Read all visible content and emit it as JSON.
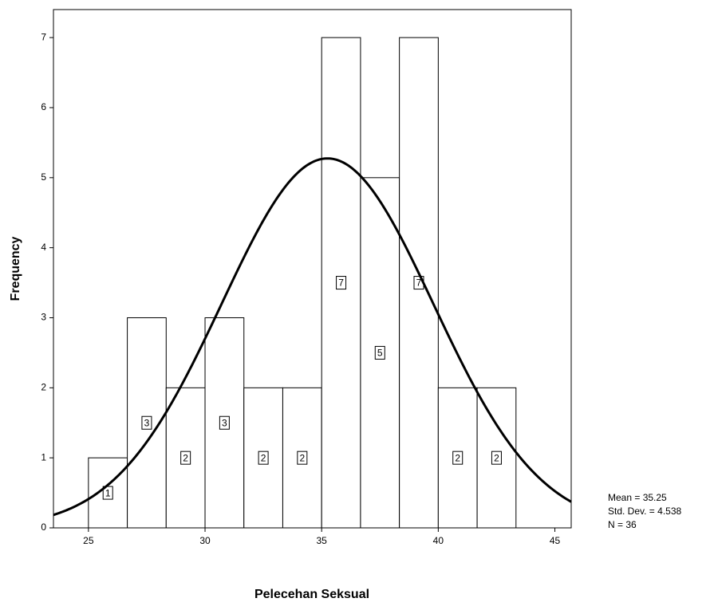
{
  "chart_data": {
    "type": "histogram",
    "x_label": "Pelecehan Seksual",
    "y_label": "Frequency",
    "bins": [
      25,
      26.667,
      28.333,
      30,
      31.667,
      33.333,
      35,
      36.667,
      38.333,
      40,
      41.667,
      43.333
    ],
    "counts": [
      1,
      3,
      2,
      3,
      2,
      2,
      7,
      5,
      7,
      2,
      2
    ],
    "color": "#ffffff",
    "edge_color": "#000000",
    "curve_color": "#000000",
    "xlim": [
      23.5,
      45.7
    ],
    "xticks": [
      25,
      30,
      35,
      40,
      45
    ],
    "ylim": [
      0,
      7.4
    ],
    "yticks": [
      0,
      1,
      2,
      3,
      4,
      5,
      6,
      7
    ],
    "normal_curve": true,
    "stats": [
      {
        "value": 35.25,
        "label": "Mean = 35.25"
      },
      {
        "value": 4.538,
        "label": "Std. Dev. = 4.538"
      },
      {
        "value": 36,
        "label": "N = 36"
      }
    ]
  }
}
